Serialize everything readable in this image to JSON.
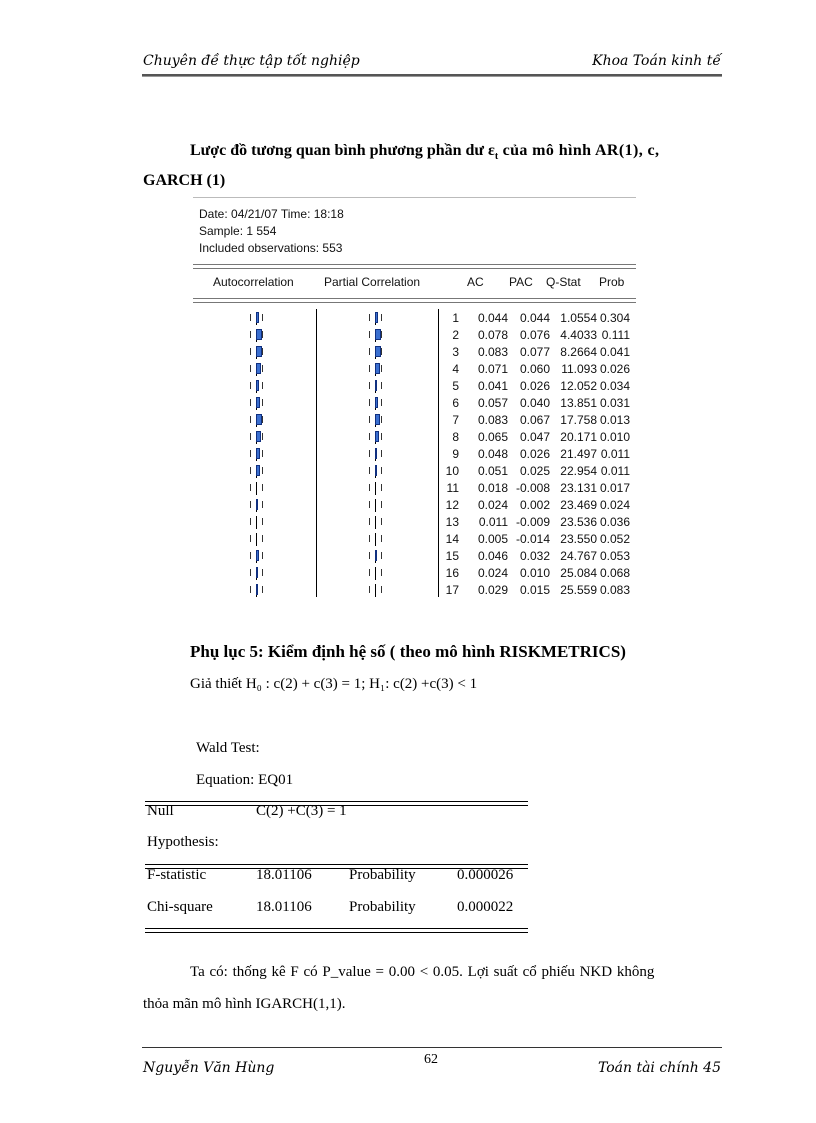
{
  "header": {
    "left": "Chuyên đề thực tập tốt nghiệp",
    "right": "Khoa Toán kinh tế"
  },
  "intro": {
    "line1": "Lược đồ tương quan bình phương phần dư ε",
    "sub": "t",
    "line1_end": " của mô hình AR(1), c,",
    "line2": "GARCH (1)"
  },
  "eviews": {
    "date": "Date: 04/21/07   Time: 18:18",
    "sample": "Sample: 1 554",
    "obs": "Included observations: 553",
    "columns": [
      "Autocorrelation",
      "Partial Correlation",
      "AC",
      "PAC",
      "Q-Stat",
      "Prob"
    ],
    "rows": [
      [
        "1",
        "0.044",
        "0.044",
        "1.0554",
        "0.304"
      ],
      [
        "2",
        "0.078",
        "0.076",
        "4.4033",
        "0.111"
      ],
      [
        "3",
        "0.083",
        "0.077",
        "8.2664",
        "0.041"
      ],
      [
        "4",
        "0.071",
        "0.060",
        "11.093",
        "0.026"
      ],
      [
        "5",
        "0.041",
        "0.026",
        "12.052",
        "0.034"
      ],
      [
        "6",
        "0.057",
        "0.040",
        "13.851",
        "0.031"
      ],
      [
        "7",
        "0.083",
        "0.067",
        "17.758",
        "0.013"
      ],
      [
        "8",
        "0.065",
        "0.047",
        "20.171",
        "0.010"
      ],
      [
        "9",
        "0.048",
        "0.026",
        "21.497",
        "0.011"
      ],
      [
        "10",
        "0.051",
        "0.025",
        "22.954",
        "0.011"
      ],
      [
        "11",
        "0.018",
        "-0.008",
        "23.131",
        "0.017"
      ],
      [
        "12",
        "0.024",
        "0.002",
        "23.469",
        "0.024"
      ],
      [
        "13",
        "0.011",
        "-0.009",
        "23.536",
        "0.036"
      ],
      [
        "14",
        "0.005",
        "-0.014",
        "23.550",
        "0.052"
      ],
      [
        "15",
        "0.046",
        "0.032",
        "24.767",
        "0.053"
      ],
      [
        "16",
        "0.024",
        "0.010",
        "25.084",
        "0.068"
      ],
      [
        "17",
        "0.029",
        "0.015",
        "25.559",
        "0.083"
      ]
    ],
    "bar_color": "#3a6fd0"
  },
  "appendix": {
    "title": "Phụ lục 5: Kiểm định hệ số ( theo mô hình RISKMETRICS)",
    "hypothesis": "Giả thiết H₀ : c(2) + c(3) = 1; H₁: c(2) +c(3) < 1"
  },
  "wald": {
    "title": "Wald Test:",
    "equation": "Equation: EQ01",
    "null_label": "Null",
    "null_value": "C(2) +C(3) = 1",
    "hyp_label": "Hypothesis:",
    "rows": [
      [
        "F-statistic",
        "18.01106",
        "Probability",
        "0.000026"
      ],
      [
        "Chi-square",
        "18.01106",
        "Probability",
        "0.000022"
      ]
    ]
  },
  "conclusion": {
    "line1": "Ta có: thống kê F có P_value = 0.00 < 0.05. Lợi suất cổ phiếu NKD không",
    "line2": "thỏa mãn mô hình IGARCH(1,1)."
  },
  "footer": {
    "left": "Nguyễn Văn Hùng",
    "page": "62",
    "right": "Toán tài chính 45"
  }
}
